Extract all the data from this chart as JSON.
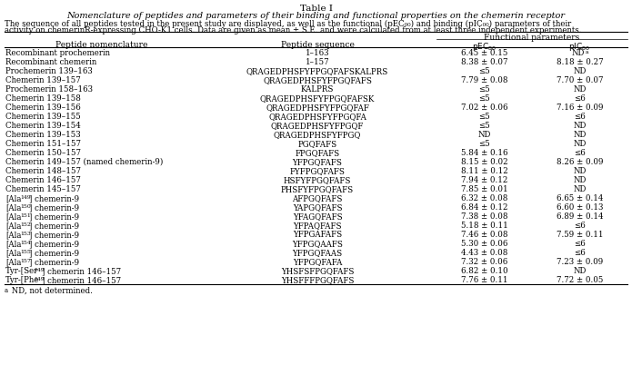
{
  "title_line1": "Table I",
  "title_line2": "Nomenclature of peptides and parameters of their binding and functional properties on the chemerin receptor",
  "caption_line1": "The sequence of all peptides tested in the present study are displayed, as well as the functional (pEC₀₀) and binding (pIC₀₀) parameters of their",
  "caption_line2": "activity on chemerinR-expressing CHO-K1 cells. Data are given as mean ± S.E. and were calculated from at least three independent experiments.",
  "functional_params_header": "Functional parameters",
  "col0_header": "Peptide nomenclature",
  "col1_header": "Peptide sequence",
  "col2_header": "pEC",
  "col3_header": "pIC",
  "sub80": "80",
  "footnote": "a ND, not determined.",
  "rows": [
    [
      "Recombinant prochemerin",
      "1–163",
      "6.45 ± 0.15",
      "ND"
    ],
    [
      "Recombinant chemerin",
      "1–157",
      "8.38 ± 0.07",
      "8.18 ± 0.27"
    ],
    [
      "Prochemerin 139–163",
      "QRAGEDPHSFYFPGQFAFSKALPRS",
      "≤5",
      "ND"
    ],
    [
      "Chemerin 139–157",
      "QRAGEDPHSFYFPGQFAFS",
      "7.79 ± 0.08",
      "7.70 ± 0.07"
    ],
    [
      "Prochemerin 158–163",
      "KALPRS",
      "≤5",
      "ND"
    ],
    [
      "Chemerin 139–158",
      "QRAGEDPHSFYFPGQFAFSK",
      "≤5",
      "≤6"
    ],
    [
      "Chemerin 139–156",
      "QRAGEDPHSFYFPGQFAF",
      "7.02 ± 0.06",
      "7.16 ± 0.09"
    ],
    [
      "Chemerin 139–155",
      "QRAGEDPHSFYFPGQFA",
      "≤5",
      "≤6"
    ],
    [
      "Chemerin 139–154",
      "QRAGEDPHSFYFPGQF",
      "≤5",
      "ND"
    ],
    [
      "Chemerin 139–153",
      "QRAGEDPHSFYFPGQ",
      "ND",
      "ND"
    ],
    [
      "Chemerin 151–157",
      "PGQFAFS",
      "≤5",
      "ND"
    ],
    [
      "Chemerin 150–157",
      "FPGQFAFS",
      "5.84 ± 0.16",
      "≤6"
    ],
    [
      "Chemerin 149–157 (named chemerin-9)",
      "YFPGQFAFS",
      "8.15 ± 0.02",
      "8.26 ± 0.09"
    ],
    [
      "Chemerin 148–157",
      "FYFPGQFAFS",
      "8.11 ± 0.12",
      "ND"
    ],
    [
      "Chemerin 146–157",
      "HSFYFPGQFAFS",
      "7.94 ± 0.12",
      "ND"
    ],
    [
      "Chemerin 145–157",
      "PHSFYFPGQFAFS",
      "7.85 ± 0.01",
      "ND"
    ],
    [
      "[Ala149] chemerin-9",
      "AFPGQFAFS",
      "6.32 ± 0.08",
      "6.65 ± 0.14"
    ],
    [
      "[Ala150] chemerin-9",
      "YAPGQFAFS",
      "6.84 ± 0.12",
      "6.60 ± 0.13"
    ],
    [
      "[Ala151] chemerin-9",
      "YFAGQFAFS",
      "7.38 ± 0.08",
      "6.89 ± 0.14"
    ],
    [
      "[Ala152] chemerin-9",
      "YFPAQFAFS",
      "5.18 ± 0.11",
      "≤6"
    ],
    [
      "[Ala153] chemerin-9",
      "YFPGAFAFS",
      "7.46 ± 0.08",
      "7.59 ± 0.11"
    ],
    [
      "[Ala154] chemerin-9",
      "YFPGQAAFS",
      "5.30 ± 0.06",
      "≤6"
    ],
    [
      "[Ala155] chemerin-9",
      "YFPGQFAAS",
      "4.43 ± 0.08",
      "≤6"
    ],
    [
      "[Ala157] chemerin-9",
      "YFPGQFAFA",
      "7.32 ± 0.06",
      "7.23 ± 0.09"
    ],
    [
      "Tyr-[Ser149] chemerin 146–157",
      "YHSFSFPGQFAFS",
      "6.82 ± 0.10",
      "ND"
    ],
    [
      "Tyr-[Phe149] chemerin 146–157",
      "YHSFFFPGQFAFS",
      "7.76 ± 0.11",
      "7.72 ± 0.05"
    ]
  ],
  "row0_col3_superscript": "a",
  "ala_superscripts": [
    "149",
    "150",
    "151",
    "152",
    "153",
    "154",
    "155",
    "157",
    "149",
    "149"
  ],
  "bg_color": "#ffffff",
  "text_color": "#000000"
}
